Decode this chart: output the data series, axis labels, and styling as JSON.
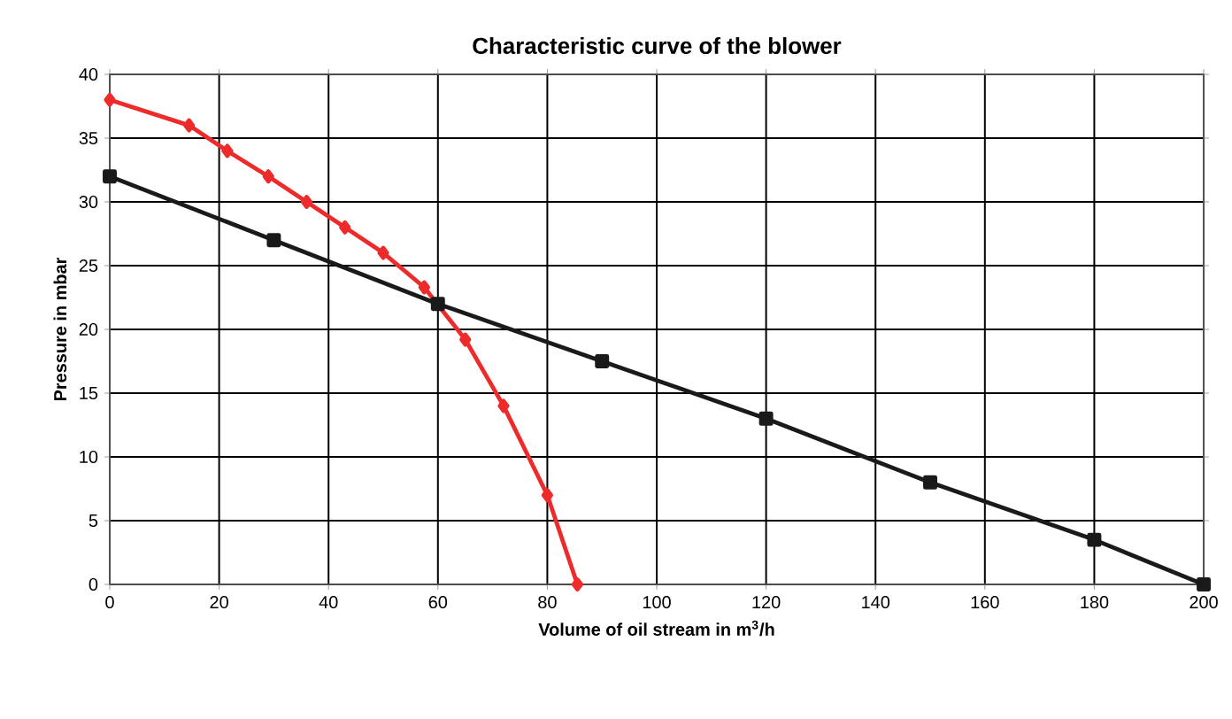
{
  "chart_data": {
    "type": "line",
    "title": "Characteristic curve of the blower",
    "xlabel": "Volume of oil stream in m$^{3}$/h",
    "ylabel": "Pressure in mbar",
    "xlim": [
      0,
      200
    ],
    "xticks": [
      0,
      20,
      40,
      60,
      80,
      100,
      120,
      140,
      160,
      180,
      200
    ],
    "ylim": [
      0,
      40
    ],
    "yticks": [
      0,
      5,
      10,
      15,
      20,
      25,
      30,
      35,
      40
    ],
    "grid": true,
    "series": [
      {
        "color": "#ee2b2b",
        "marker": "diamond",
        "x": [
          0,
          14.5,
          21.5,
          29,
          36,
          43,
          50,
          57.5,
          65,
          72,
          80,
          85.5
        ],
        "values": [
          38,
          36,
          34,
          32,
          30,
          28,
          26,
          23.3,
          19.2,
          14,
          7,
          0
        ]
      },
      {
        "color": "#1a1a1a",
        "marker": "square",
        "x": [
          0,
          30,
          60,
          90,
          120,
          150,
          180,
          200
        ],
        "values": [
          32,
          27,
          22,
          17.5,
          13,
          8,
          3.5,
          0
        ]
      }
    ]
  }
}
